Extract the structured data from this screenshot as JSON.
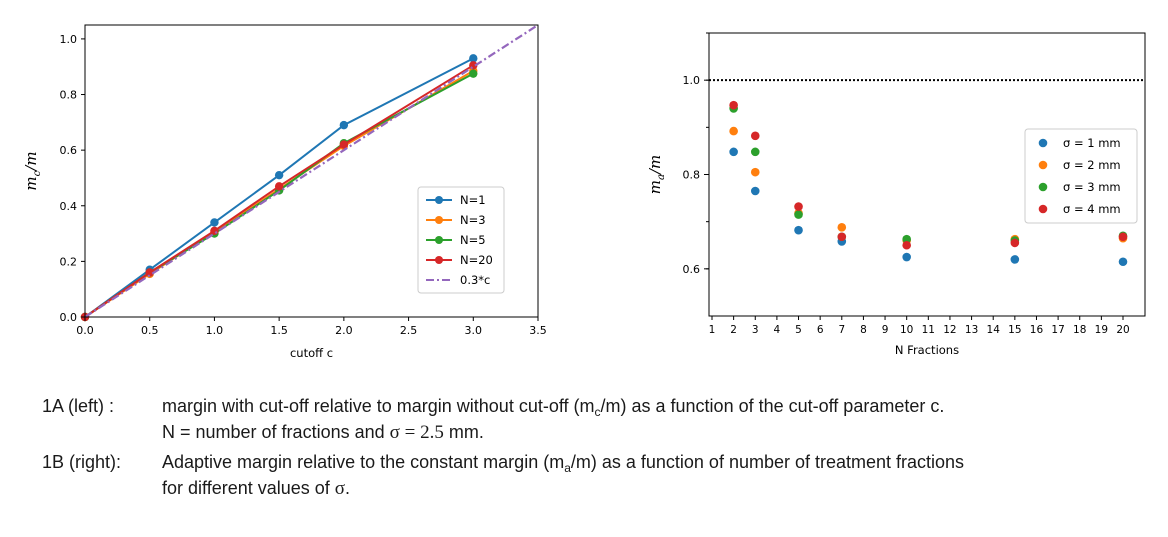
{
  "chart_data": [
    {
      "type": "line",
      "xlabel": "cutoff c",
      "ylabel": "m",
      "ylabel_sub": "c",
      "ylabel_den": "/m",
      "xlim": [
        0,
        3.5
      ],
      "ylim": [
        0,
        1.05
      ],
      "xticks": [
        "0.0",
        "0.5",
        "1.0",
        "1.5",
        "2.0",
        "2.5",
        "3.0",
        "3.5"
      ],
      "yticks": [
        "0.0",
        "0.2",
        "0.4",
        "0.6",
        "0.8",
        "1.0"
      ],
      "legend_position": "lower-right",
      "series": [
        {
          "name": "N=1",
          "color": "#1f77b4",
          "x": [
            0,
            0.5,
            1.0,
            1.5,
            2.0,
            3.0
          ],
          "y": [
            0,
            0.17,
            0.34,
            0.51,
            0.69,
            0.93
          ]
        },
        {
          "name": "N=3",
          "color": "#ff7f0e",
          "x": [
            0,
            0.5,
            1.0,
            1.5,
            2.0,
            3.0
          ],
          "y": [
            0,
            0.155,
            0.305,
            0.46,
            0.615,
            0.885
          ]
        },
        {
          "name": "N=5",
          "color": "#2ca02c",
          "x": [
            0,
            0.5,
            1.0,
            1.5,
            2.0,
            3.0
          ],
          "y": [
            0,
            0.16,
            0.3,
            0.455,
            0.625,
            0.875
          ]
        },
        {
          "name": "N=20",
          "color": "#d62728",
          "x": [
            0,
            0.5,
            1.0,
            1.5,
            2.0,
            3.0
          ],
          "y": [
            0,
            0.16,
            0.31,
            0.47,
            0.62,
            0.905
          ]
        },
        {
          "name": "0.3*c",
          "color": "#9467bd",
          "style": "dashdot",
          "x": [
            0,
            3.5
          ],
          "y": [
            0,
            1.05
          ]
        }
      ]
    },
    {
      "type": "scatter",
      "xlabel": "N Fractions",
      "ylabel": "m",
      "ylabel_sub": "a",
      "ylabel_den": "/m",
      "xlim": [
        1,
        20
      ],
      "ylim": [
        0.5,
        1.1
      ],
      "xticks": [
        "1",
        "2",
        "3",
        "4",
        "5",
        "6",
        "7",
        "8",
        "9",
        "10",
        "11",
        "12",
        "13",
        "14",
        "15",
        "16",
        "17",
        "18",
        "19",
        "20"
      ],
      "yticks": [
        "0.6",
        "0.8",
        "1.0"
      ],
      "reference_line_y": 1.0,
      "legend_position": "right",
      "series": [
        {
          "name": "σ = 1 mm",
          "color": "#1f77b4",
          "x": [
            2,
            3,
            5,
            7,
            10,
            15,
            20
          ],
          "y": [
            0.848,
            0.765,
            0.682,
            0.658,
            0.625,
            0.62,
            0.615
          ]
        },
        {
          "name": "σ = 2 mm",
          "color": "#ff7f0e",
          "x": [
            2,
            3,
            5,
            7,
            10,
            15,
            20
          ],
          "y": [
            0.892,
            0.805,
            0.718,
            0.688,
            0.66,
            0.663,
            0.665
          ]
        },
        {
          "name": "σ = 3 mm",
          "color": "#2ca02c",
          "x": [
            2,
            3,
            5,
            7,
            10,
            15,
            20
          ],
          "y": [
            0.94,
            0.848,
            0.715,
            0.668,
            0.663,
            0.66,
            0.67
          ]
        },
        {
          "name": "σ = 4 mm",
          "color": "#d62728",
          "x": [
            2,
            3,
            5,
            7,
            10,
            15,
            20
          ],
          "y": [
            0.947,
            0.882,
            0.732,
            0.668,
            0.65,
            0.655,
            0.668
          ]
        }
      ]
    }
  ],
  "captions": {
    "a_label": "1A (left) :",
    "a_line1_pre": "margin with cut-off relative to margin without cut-off (m",
    "a_line1_sub": "c",
    "a_line1_post": "/m) as a function of the cut-off parameter c.",
    "a_line2_pre": "N = number of fractions and ",
    "a_line2_sigma": "σ = 2.5",
    "a_line2_post": " mm.",
    "b_label": "1B (right):",
    "b_line1_pre": "Adaptive margin relative to the constant margin (m",
    "b_line1_sub": "a",
    "b_line1_post": "/m) as a function of number of treatment fractions",
    "b_line2_pre": "for different values of ",
    "b_line2_sigma": "σ",
    "b_line2_post": "."
  }
}
